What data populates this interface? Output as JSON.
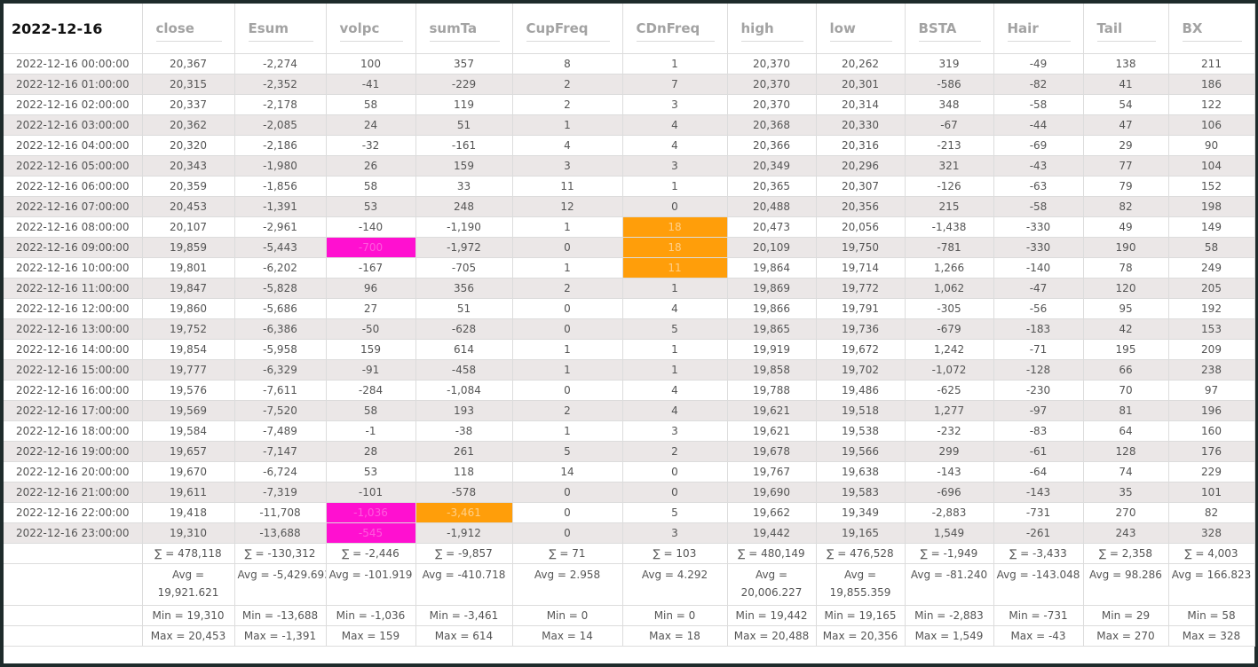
{
  "date_header": "2022-12-16",
  "columns": [
    "close",
    "Esum",
    "volpc",
    "sumTa",
    "CupFreq",
    "CDnFreq",
    "high",
    "low",
    "BSTA",
    "Hair",
    "Tail",
    "BX"
  ],
  "colors": {
    "magenta": "#ff10d0",
    "orange": "#ff9e0a",
    "frame": "#1e2b2b"
  },
  "rows": [
    {
      "ts": "2022-12-16 00:00:00",
      "vals": [
        "20,367",
        "-2,274",
        "100",
        "357",
        "8",
        "1",
        "20,370",
        "20,262",
        "319",
        "-49",
        "138",
        "211"
      ]
    },
    {
      "ts": "2022-12-16 01:00:00",
      "vals": [
        "20,315",
        "-2,352",
        "-41",
        "-229",
        "2",
        "7",
        "20,370",
        "20,301",
        "-586",
        "-82",
        "41",
        "186"
      ]
    },
    {
      "ts": "2022-12-16 02:00:00",
      "vals": [
        "20,337",
        "-2,178",
        "58",
        "119",
        "2",
        "3",
        "20,370",
        "20,314",
        "348",
        "-58",
        "54",
        "122"
      ]
    },
    {
      "ts": "2022-12-16 03:00:00",
      "vals": [
        "20,362",
        "-2,085",
        "24",
        "51",
        "1",
        "4",
        "20,368",
        "20,330",
        "-67",
        "-44",
        "47",
        "106"
      ]
    },
    {
      "ts": "2022-12-16 04:00:00",
      "vals": [
        "20,320",
        "-2,186",
        "-32",
        "-161",
        "4",
        "4",
        "20,366",
        "20,316",
        "-213",
        "-69",
        "29",
        "90"
      ]
    },
    {
      "ts": "2022-12-16 05:00:00",
      "vals": [
        "20,343",
        "-1,980",
        "26",
        "159",
        "3",
        "3",
        "20,349",
        "20,296",
        "321",
        "-43",
        "77",
        "104"
      ]
    },
    {
      "ts": "2022-12-16 06:00:00",
      "vals": [
        "20,359",
        "-1,856",
        "58",
        "33",
        "11",
        "1",
        "20,365",
        "20,307",
        "-126",
        "-63",
        "79",
        "152"
      ]
    },
    {
      "ts": "2022-12-16 07:00:00",
      "vals": [
        "20,453",
        "-1,391",
        "53",
        "248",
        "12",
        "0",
        "20,488",
        "20,356",
        "215",
        "-58",
        "82",
        "198"
      ]
    },
    {
      "ts": "2022-12-16 08:00:00",
      "vals": [
        "20,107",
        "-2,961",
        "-140",
        "-1,190",
        "1",
        "18",
        "20,473",
        "20,056",
        "-1,438",
        "-330",
        "49",
        "149"
      ]
    },
    {
      "ts": "2022-12-16 09:00:00",
      "vals": [
        "19,859",
        "-5,443",
        "-700",
        "-1,972",
        "0",
        "18",
        "20,109",
        "19,750",
        "-781",
        "-330",
        "190",
        "58"
      ]
    },
    {
      "ts": "2022-12-16 10:00:00",
      "vals": [
        "19,801",
        "-6,202",
        "-167",
        "-705",
        "1",
        "11",
        "19,864",
        "19,714",
        "1,266",
        "-140",
        "78",
        "249"
      ]
    },
    {
      "ts": "2022-12-16 11:00:00",
      "vals": [
        "19,847",
        "-5,828",
        "96",
        "356",
        "2",
        "1",
        "19,869",
        "19,772",
        "1,062",
        "-47",
        "120",
        "205"
      ]
    },
    {
      "ts": "2022-12-16 12:00:00",
      "vals": [
        "19,860",
        "-5,686",
        "27",
        "51",
        "0",
        "4",
        "19,866",
        "19,791",
        "-305",
        "-56",
        "95",
        "192"
      ]
    },
    {
      "ts": "2022-12-16 13:00:00",
      "vals": [
        "19,752",
        "-6,386",
        "-50",
        "-628",
        "0",
        "5",
        "19,865",
        "19,736",
        "-679",
        "-183",
        "42",
        "153"
      ]
    },
    {
      "ts": "2022-12-16 14:00:00",
      "vals": [
        "19,854",
        "-5,958",
        "159",
        "614",
        "1",
        "1",
        "19,919",
        "19,672",
        "1,242",
        "-71",
        "195",
        "209"
      ]
    },
    {
      "ts": "2022-12-16 15:00:00",
      "vals": [
        "19,777",
        "-6,329",
        "-91",
        "-458",
        "1",
        "1",
        "19,858",
        "19,702",
        "-1,072",
        "-128",
        "66",
        "238"
      ]
    },
    {
      "ts": "2022-12-16 16:00:00",
      "vals": [
        "19,576",
        "-7,611",
        "-284",
        "-1,084",
        "0",
        "4",
        "19,788",
        "19,486",
        "-625",
        "-230",
        "70",
        "97"
      ]
    },
    {
      "ts": "2022-12-16 17:00:00",
      "vals": [
        "19,569",
        "-7,520",
        "58",
        "193",
        "2",
        "4",
        "19,621",
        "19,518",
        "1,277",
        "-97",
        "81",
        "196"
      ]
    },
    {
      "ts": "2022-12-16 18:00:00",
      "vals": [
        "19,584",
        "-7,489",
        "-1",
        "-38",
        "1",
        "3",
        "19,621",
        "19,538",
        "-232",
        "-83",
        "64",
        "160"
      ]
    },
    {
      "ts": "2022-12-16 19:00:00",
      "vals": [
        "19,657",
        "-7,147",
        "28",
        "261",
        "5",
        "2",
        "19,678",
        "19,566",
        "299",
        "-61",
        "128",
        "176"
      ]
    },
    {
      "ts": "2022-12-16 20:00:00",
      "vals": [
        "19,670",
        "-6,724",
        "53",
        "118",
        "14",
        "0",
        "19,767",
        "19,638",
        "-143",
        "-64",
        "74",
        "229"
      ]
    },
    {
      "ts": "2022-12-16 21:00:00",
      "vals": [
        "19,611",
        "-7,319",
        "-101",
        "-578",
        "0",
        "0",
        "19,690",
        "19,583",
        "-696",
        "-143",
        "35",
        "101"
      ]
    },
    {
      "ts": "2022-12-16 22:00:00",
      "vals": [
        "19,418",
        "-11,708",
        "-1,036",
        "-3,461",
        "0",
        "5",
        "19,662",
        "19,349",
        "-2,883",
        "-731",
        "270",
        "82"
      ]
    },
    {
      "ts": "2022-12-16 23:00:00",
      "vals": [
        "19,310",
        "-13,688",
        "-545",
        "-1,912",
        "0",
        "3",
        "19,442",
        "19,165",
        "1,549",
        "-261",
        "243",
        "328"
      ]
    }
  ],
  "highlights": [
    {
      "row": 8,
      "col": 5,
      "color": "orange"
    },
    {
      "row": 9,
      "col": 2,
      "color": "magenta"
    },
    {
      "row": 9,
      "col": 5,
      "color": "orange"
    },
    {
      "row": 10,
      "col": 5,
      "color": "orange"
    },
    {
      "row": 22,
      "col": 2,
      "color": "magenta"
    },
    {
      "row": 22,
      "col": 3,
      "color": "orange"
    },
    {
      "row": 23,
      "col": 2,
      "color": "magenta"
    }
  ],
  "sums": [
    "∑ = 478,118",
    "∑ = -130,312",
    "∑ = -2,446",
    "∑ = -9,857",
    "∑ = 71",
    "∑ = 103",
    "∑ = 480,149",
    "∑ = 476,528",
    "∑ = -1,949",
    "∑ = -3,433",
    "∑ = 2,358",
    "∑ = 4,003"
  ],
  "avgs": [
    "Avg = 19,921.621",
    "Avg = -5,429.693",
    "Avg = -101.919",
    "Avg = -410.718",
    "Avg = 2.958",
    "Avg = 4.292",
    "Avg = 20,006.227",
    "Avg = 19,855.359",
    "Avg = -81.240",
    "Avg = -143.048",
    "Avg = 98.286",
    "Avg = 166.823"
  ],
  "mins": [
    "Min = 19,310",
    "Min = -13,688",
    "Min = -1,036",
    "Min = -3,461",
    "Min = 0",
    "Min = 0",
    "Min = 19,442",
    "Min = 19,165",
    "Min = -2,883",
    "Min = -731",
    "Min = 29",
    "Min = 58"
  ],
  "maxs": [
    "Max = 20,453",
    "Max = -1,391",
    "Max = 159",
    "Max = 614",
    "Max = 14",
    "Max = 18",
    "Max = 20,488",
    "Max = 20,356",
    "Max = 1,549",
    "Max = -43",
    "Max = 270",
    "Max = 328"
  ]
}
